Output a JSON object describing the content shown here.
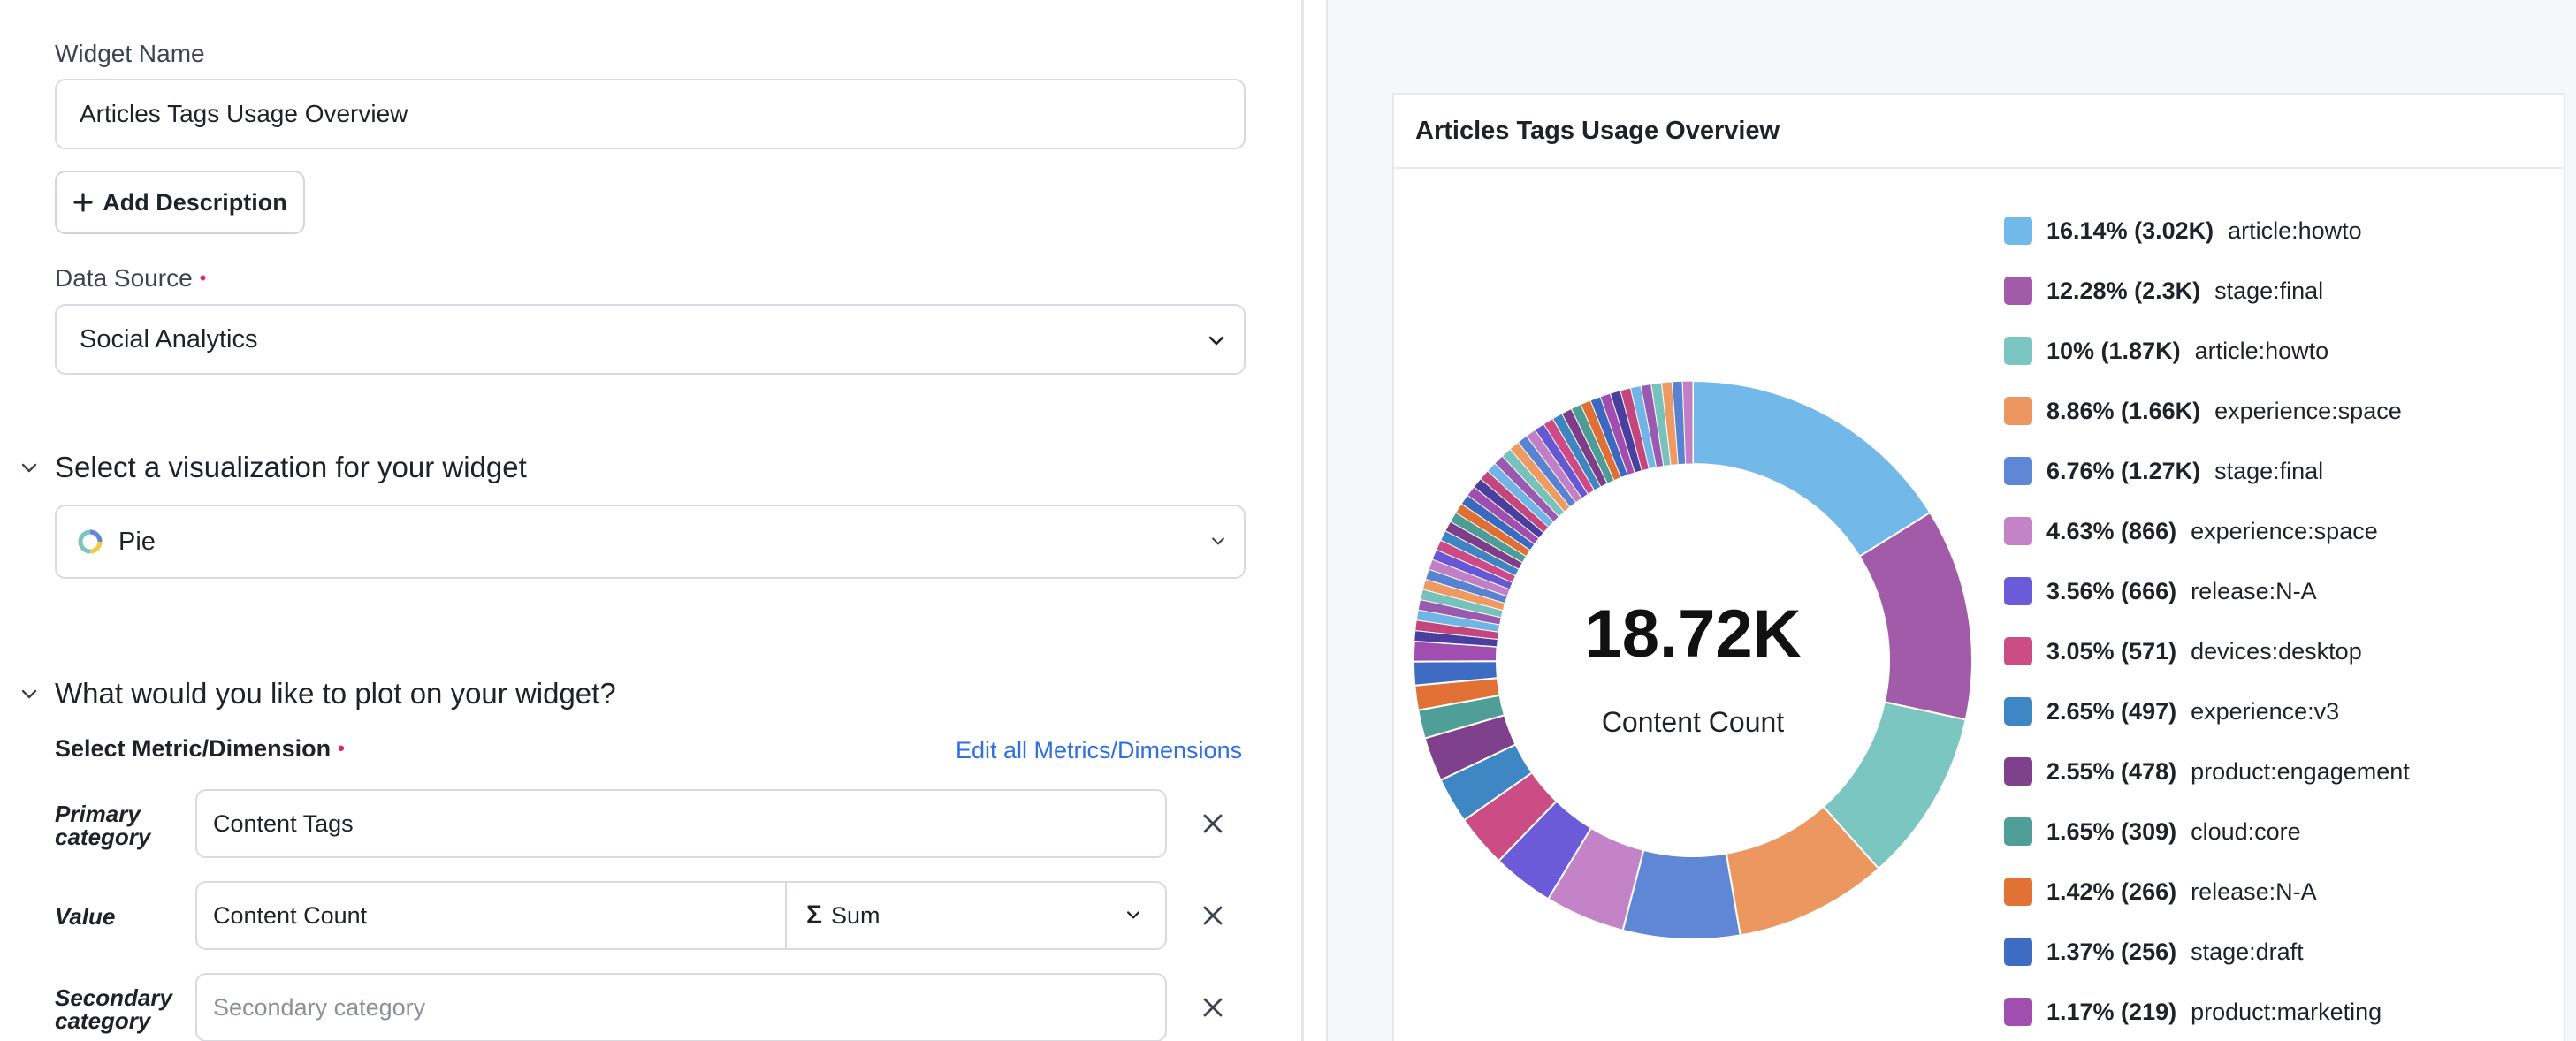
{
  "form": {
    "widget_name_label": "Widget Name",
    "widget_name_value": "Articles Tags Usage Overview",
    "add_description_label": "Add Description",
    "data_source_label": "Data Source",
    "data_source_value": "Social Analytics",
    "required_mark": "•"
  },
  "visualization": {
    "section_title": "Select a visualization for your widget",
    "selected": "Pie"
  },
  "plot": {
    "section_title": "What would you like to plot on your widget?",
    "metric_label": "Select Metric/Dimension",
    "edit_link": "Edit all Metrics/Dimensions",
    "primary_label_line1": "Primary",
    "primary_label_line2": "category",
    "primary_value": "Content Tags",
    "value_label": "Value",
    "value_metric": "Content Count",
    "aggregation_symbol": "Σ",
    "aggregation": "Sum",
    "secondary_label_line1": "Secondary",
    "secondary_label_line2": "category",
    "secondary_placeholder": "Secondary category"
  },
  "preview": {
    "widget_title": "Articles Tags Usage Overview",
    "total_value": "18.72K",
    "total_label": "Content Count"
  },
  "chart_data": {
    "type": "pie",
    "style": "donut",
    "total": "18.72K",
    "center_label": "Content Count",
    "legend_position": "right",
    "slices": [
      {
        "label": "16.14% (3.02K)",
        "name": "article:howto",
        "percent": 16.14,
        "color": "#72b8e8"
      },
      {
        "label": "12.28% (2.3K)",
        "name": "stage:final",
        "percent": 12.28,
        "color": "#a25ba8"
      },
      {
        "label": "10% (1.87K)",
        "name": "article:howto",
        "percent": 10.0,
        "color": "#7bc6c0"
      },
      {
        "label": "8.86% (1.66K)",
        "name": "experience:space",
        "percent": 8.86,
        "color": "#ec9660"
      },
      {
        "label": "6.76% (1.27K)",
        "name": "stage:final",
        "percent": 6.76,
        "color": "#5f87d6"
      },
      {
        "label": "4.63% (866)",
        "name": "experience:space",
        "percent": 4.63,
        "color": "#c383c6"
      },
      {
        "label": "3.56% (666)",
        "name": "release:N-A",
        "percent": 3.56,
        "color": "#6c5bd9"
      },
      {
        "label": "3.05% (571)",
        "name": "devices:desktop",
        "percent": 3.05,
        "color": "#cc4c86"
      },
      {
        "label": "2.65% (497)",
        "name": "experience:v3",
        "percent": 2.65,
        "color": "#3f87c4"
      },
      {
        "label": "2.55% (478)",
        "name": "product:engagement",
        "percent": 2.55,
        "color": "#80418c"
      },
      {
        "label": "1.65% (309)",
        "name": "cloud:core",
        "percent": 1.65,
        "color": "#4f9f98"
      },
      {
        "label": "1.42% (266)",
        "name": "release:N-A",
        "percent": 1.42,
        "color": "#e17135"
      },
      {
        "label": "1.37% (256)",
        "name": "stage:draft",
        "percent": 1.37,
        "color": "#3e6cc2"
      },
      {
        "label": "1.17% (219)",
        "name": "product:marketing",
        "percent": 1.17,
        "color": "#a04fb0"
      }
    ],
    "other_slices_colors": [
      "#4a3f9e",
      "#c3467c",
      "#71b4e6",
      "#9a5ab0",
      "#77c2bb",
      "#ef9a62",
      "#5a82d2",
      "#c27fc6",
      "#6657d4",
      "#cd4a87",
      "#3e85c2",
      "#7d3d88",
      "#4d9c95",
      "#e06f33",
      "#3b69bf",
      "#a24db0"
    ]
  }
}
